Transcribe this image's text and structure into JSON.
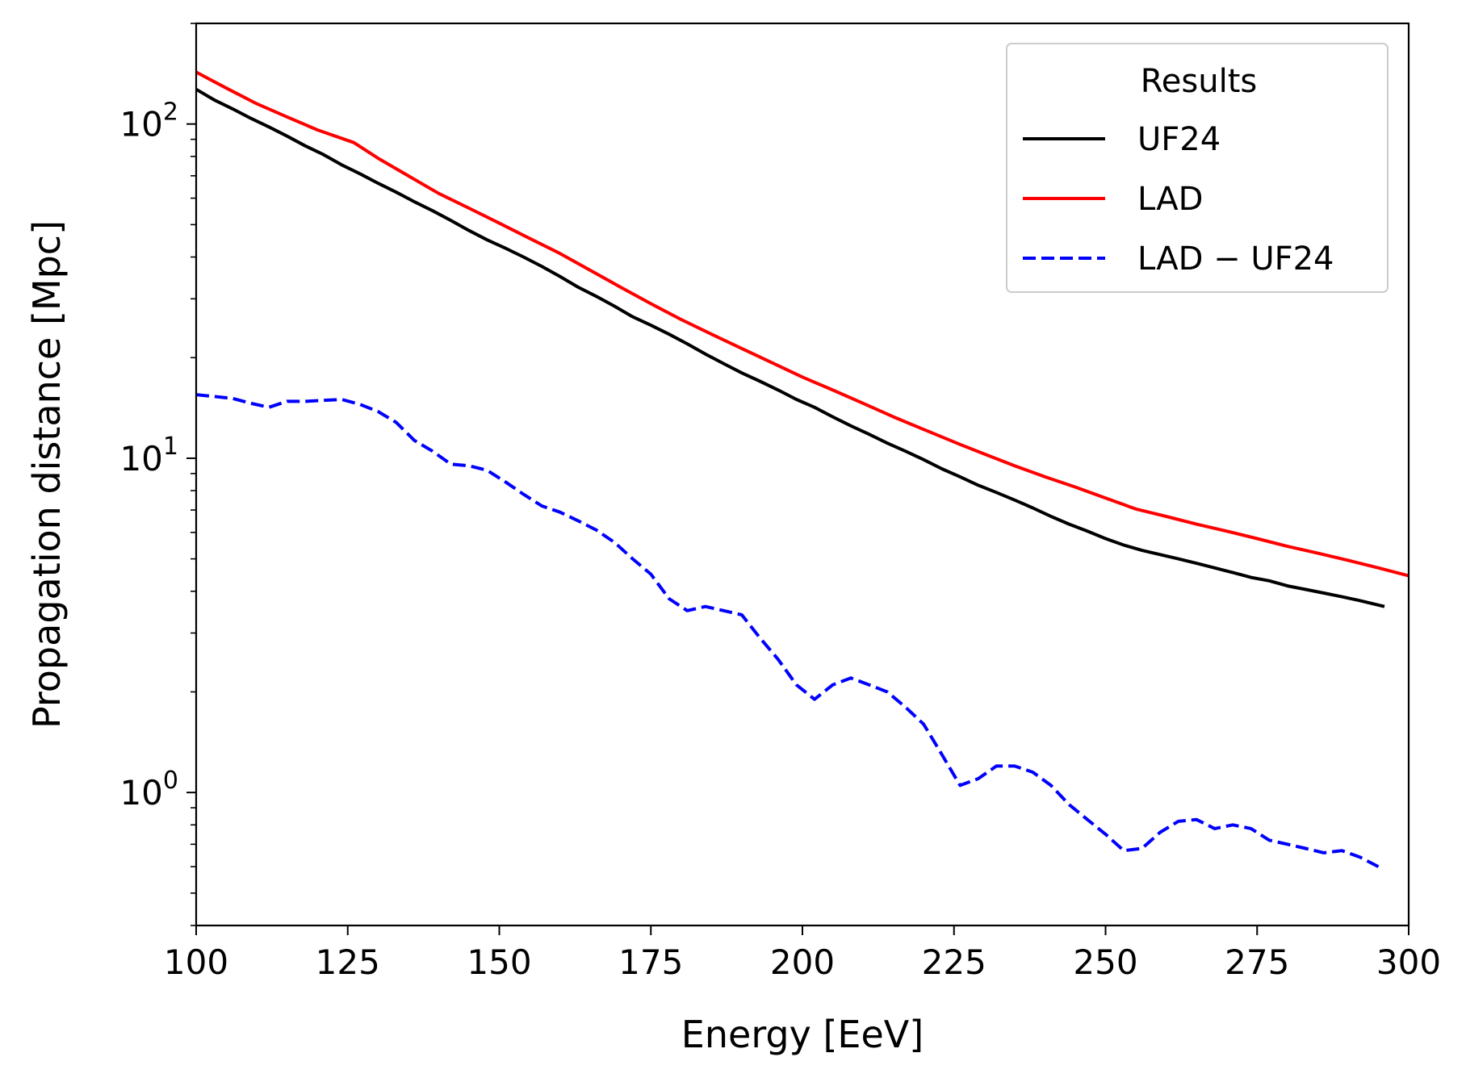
{
  "chart_data": {
    "type": "line",
    "title": "",
    "xlabel": "Energy [EeV]",
    "ylabel": "Propagation distance [Mpc]",
    "xlim": [
      100,
      300
    ],
    "ylim": [
      0.4,
      200
    ],
    "yscale": "log",
    "grid": false,
    "x_ticks": [
      100,
      125,
      150,
      175,
      200,
      225,
      250,
      275,
      300
    ],
    "y_ticks": [
      {
        "value": 1,
        "base": "10",
        "exp": "0"
      },
      {
        "value": 10,
        "base": "10",
        "exp": "1"
      },
      {
        "value": 100,
        "base": "10",
        "exp": "2"
      }
    ],
    "legend": {
      "title": "Results",
      "position": "top-right"
    },
    "series": [
      {
        "name": "UF24",
        "color": "#000000",
        "dash": "solid",
        "x": [
          100,
          103,
          106,
          109,
          112,
          115,
          118,
          121,
          124,
          127,
          130,
          133,
          136,
          139,
          142,
          145,
          148,
          151,
          154,
          157,
          160,
          163,
          166,
          169,
          172,
          175,
          178,
          181,
          184,
          187,
          190,
          193,
          196,
          199,
          202,
          205,
          208,
          211,
          214,
          217,
          220,
          223,
          226,
          229,
          232,
          235,
          238,
          241,
          244,
          247,
          250,
          253,
          256,
          259,
          262,
          265,
          268,
          271,
          274,
          277,
          280,
          283,
          286,
          289,
          292,
          296
        ],
        "y": [
          127,
          118,
          111,
          104,
          98,
          92,
          86,
          81,
          75.5,
          71,
          66.5,
          62.5,
          58.5,
          55,
          51.5,
          48,
          45,
          42.5,
          40,
          37.5,
          35,
          32.5,
          30.5,
          28.5,
          26.5,
          25,
          23.5,
          22,
          20.5,
          19.2,
          18,
          17,
          16,
          15,
          14.2,
          13.3,
          12.5,
          11.8,
          11.1,
          10.5,
          9.9,
          9.3,
          8.8,
          8.3,
          7.9,
          7.5,
          7.1,
          6.7,
          6.35,
          6.05,
          5.75,
          5.5,
          5.3,
          5.15,
          5.0,
          4.85,
          4.7,
          4.55,
          4.4,
          4.3,
          4.15,
          4.05,
          3.95,
          3.85,
          3.75,
          3.6
        ]
      },
      {
        "name": "LAD",
        "color": "#ff0000",
        "dash": "solid",
        "x": [
          100,
          105,
          110,
          115,
          120,
          126,
          130,
          135,
          140,
          145,
          150,
          155,
          160,
          165,
          170,
          175,
          180,
          185,
          190,
          195,
          200,
          205,
          210,
          215,
          220,
          226,
          230,
          235,
          240,
          245,
          250,
          255,
          260,
          265,
          270,
          275,
          280,
          285,
          290,
          295,
          300
        ],
        "y": [
          143,
          128,
          115,
          105,
          96,
          88,
          79,
          70,
          62,
          56,
          50.5,
          45.5,
          41,
          36.5,
          32.5,
          29,
          26,
          23.5,
          21.3,
          19.3,
          17.5,
          16,
          14.6,
          13.3,
          12.2,
          11,
          10.3,
          9.5,
          8.8,
          8.2,
          7.6,
          7.05,
          6.7,
          6.35,
          6.05,
          5.75,
          5.45,
          5.2,
          4.95,
          4.7,
          4.45
        ]
      },
      {
        "name": "LAD − UF24",
        "color": "#0000ff",
        "dash": "dashed",
        "x": [
          100,
          103,
          106,
          109,
          112,
          115,
          118,
          121,
          124,
          127,
          130,
          133,
          136,
          139,
          142,
          145,
          148,
          151,
          154,
          157,
          160,
          163,
          166,
          169,
          172,
          175,
          178,
          181,
          184,
          187,
          190,
          193,
          196,
          199,
          202,
          205,
          208,
          211,
          214,
          217,
          220,
          223,
          226,
          229,
          232,
          235,
          238,
          241,
          244,
          247,
          250,
          253,
          256,
          259,
          262,
          265,
          268,
          271,
          274,
          277,
          280,
          283,
          286,
          289,
          292,
          295
        ],
        "y": [
          15.5,
          15.3,
          15.1,
          14.6,
          14.2,
          14.8,
          14.8,
          14.9,
          15.0,
          14.5,
          13.8,
          12.8,
          11.3,
          10.5,
          9.6,
          9.5,
          9.2,
          8.5,
          7.8,
          7.2,
          6.9,
          6.5,
          6.1,
          5.6,
          5.0,
          4.5,
          3.8,
          3.5,
          3.6,
          3.5,
          3.4,
          2.9,
          2.5,
          2.1,
          1.9,
          2.1,
          2.2,
          2.1,
          2.0,
          1.8,
          1.6,
          1.3,
          1.05,
          1.1,
          1.2,
          1.2,
          1.15,
          1.05,
          0.92,
          0.83,
          0.75,
          0.67,
          0.68,
          0.76,
          0.82,
          0.83,
          0.78,
          0.8,
          0.78,
          0.72,
          0.7,
          0.68,
          0.66,
          0.67,
          0.64,
          0.6
        ]
      }
    ]
  }
}
